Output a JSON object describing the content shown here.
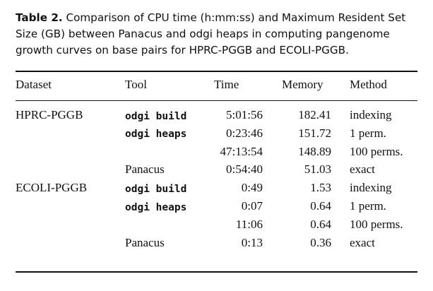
{
  "caption": {
    "label": "Table 2.",
    "text": "Comparison of CPU time (h:mm:ss) and Maximum Resident Set Size (GB) between Panacus and odgi heaps in computing pangenome growth curves on base pairs for HPRC-PGGB and ECOLI-PGGB."
  },
  "table": {
    "headers": [
      "Dataset",
      "Tool",
      "Time",
      "Memory",
      "Method"
    ],
    "rows": [
      {
        "dataset": "HPRC-PGGB",
        "tool": "odgi build",
        "tool_mono": true,
        "time": "5:01:56",
        "memory": "182.41",
        "method": "indexing"
      },
      {
        "dataset": "",
        "tool": "odgi heaps",
        "tool_mono": true,
        "time": "0:23:46",
        "memory": "151.72",
        "method": "1 perm."
      },
      {
        "dataset": "",
        "tool": "",
        "tool_mono": false,
        "time": "47:13:54",
        "memory": "148.89",
        "method": "100 perms."
      },
      {
        "dataset": "",
        "tool": "Panacus",
        "tool_mono": false,
        "time": "0:54:40",
        "memory": "51.03",
        "method": "exact"
      },
      {
        "dataset": "ECOLI-PGGB",
        "tool": "odgi build",
        "tool_mono": true,
        "time": "0:49",
        "memory": "1.53",
        "method": "indexing"
      },
      {
        "dataset": "",
        "tool": "odgi heaps",
        "tool_mono": true,
        "time": "0:07",
        "memory": "0.64",
        "method": "1 perm."
      },
      {
        "dataset": "",
        "tool": "",
        "tool_mono": false,
        "time": "11:06",
        "memory": "0.64",
        "method": "100 perms."
      },
      {
        "dataset": "",
        "tool": "Panacus",
        "tool_mono": false,
        "time": "0:13",
        "memory": "0.36",
        "method": "exact"
      }
    ]
  }
}
